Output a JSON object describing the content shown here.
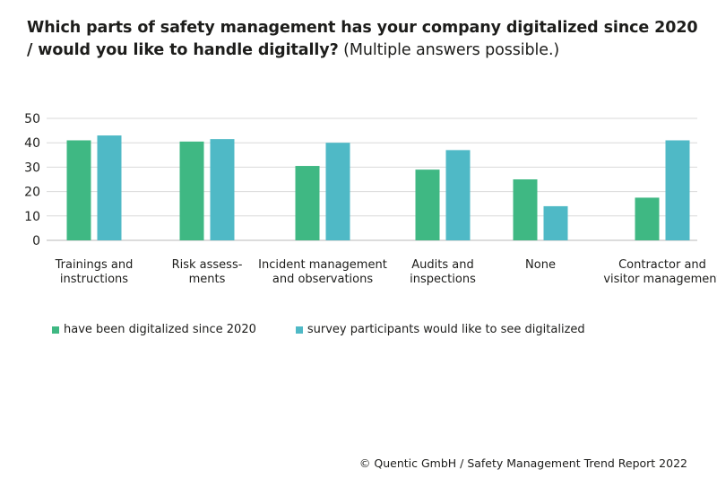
{
  "title": {
    "bold": "Which parts of safety management has your company digitalized since 2020 / would you like to handle digitally?",
    "normal": " (Multiple answers possible.)"
  },
  "source": "© Quentic GmbH / Safety Management Trend Report 2022",
  "chart_data": {
    "type": "bar",
    "categories": [
      [
        "Trainings and",
        "instructions"
      ],
      [
        "Risk assess-",
        "ments"
      ],
      [
        "Incident management",
        "and observations"
      ],
      [
        "Audits and",
        "inspections"
      ],
      [
        "None"
      ],
      [
        "Contractor and",
        "visitor management"
      ]
    ],
    "series": [
      {
        "name": "have been digitalized since 2020",
        "color": "#3fb883",
        "values": [
          41,
          40.5,
          30.5,
          29,
          25,
          17.5
        ]
      },
      {
        "name": "survey participants would like to see digitalized",
        "color": "#4fb9c6",
        "values": [
          43,
          41.5,
          40,
          37,
          14,
          41
        ]
      }
    ],
    "ylim": [
      0,
      50
    ],
    "yticks": [
      0,
      10,
      20,
      30,
      40,
      50
    ],
    "grid": true,
    "legend_position": "bottom-left"
  }
}
